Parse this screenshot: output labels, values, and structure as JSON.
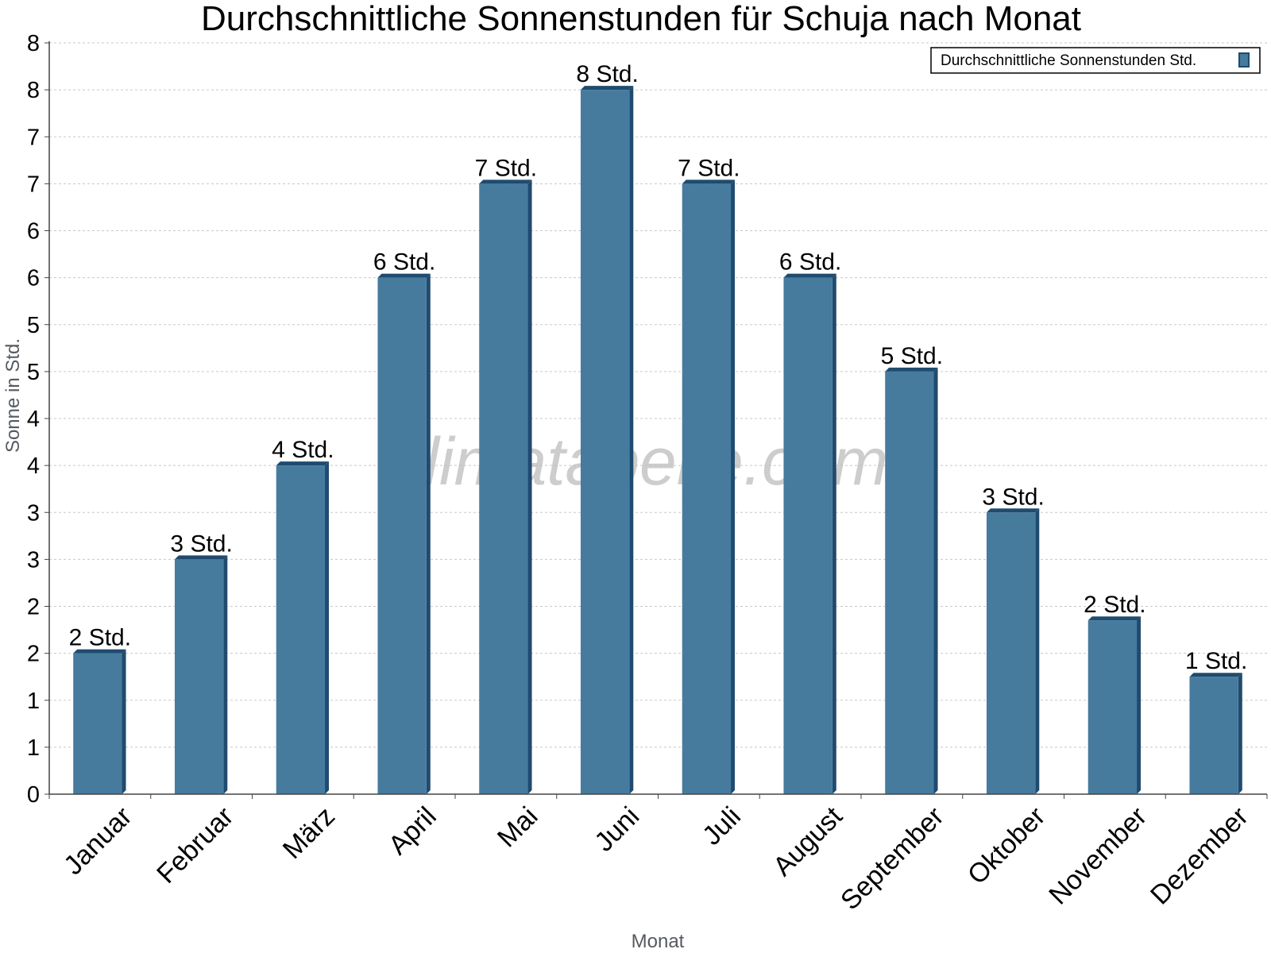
{
  "chart_data": {
    "type": "bar",
    "title": "Durchschnittliche Sonnenstunden für Schuja nach Monat",
    "xlabel": "Monat",
    "ylabel": "Sonne in Std.",
    "ylim": [
      0,
      8
    ],
    "y_tick_labels": [
      "0",
      "1",
      "1",
      "2",
      "2",
      "3",
      "3",
      "4",
      "4",
      "5",
      "5",
      "6",
      "6",
      "7",
      "7",
      "8",
      "8"
    ],
    "categories": [
      "Januar",
      "Februar",
      "März",
      "April",
      "Mai",
      "Juni",
      "Juli",
      "August",
      "September",
      "Oktober",
      "November",
      "Dezember"
    ],
    "series": [
      {
        "name": "Durchschnittliche Sonnenstunden Std.",
        "values": [
          1.5,
          2.5,
          3.5,
          5.5,
          6.5,
          7.5,
          6.5,
          5.5,
          4.5,
          3.0,
          1.85,
          1.25
        ],
        "labels": [
          "2 Std.",
          "3 Std.",
          "4 Std.",
          "6 Std.",
          "7 Std.",
          "8 Std.",
          "7 Std.",
          "6 Std.",
          "5 Std.",
          "3 Std.",
          "2 Std.",
          "1 Std."
        ]
      }
    ],
    "grid": true,
    "legend_position": "top-right",
    "colors": {
      "bar": "#467b9e",
      "bar_side": "#1f4b6e",
      "bar_top": "#1f4b6e"
    },
    "watermark": "klimatabelle.com"
  }
}
